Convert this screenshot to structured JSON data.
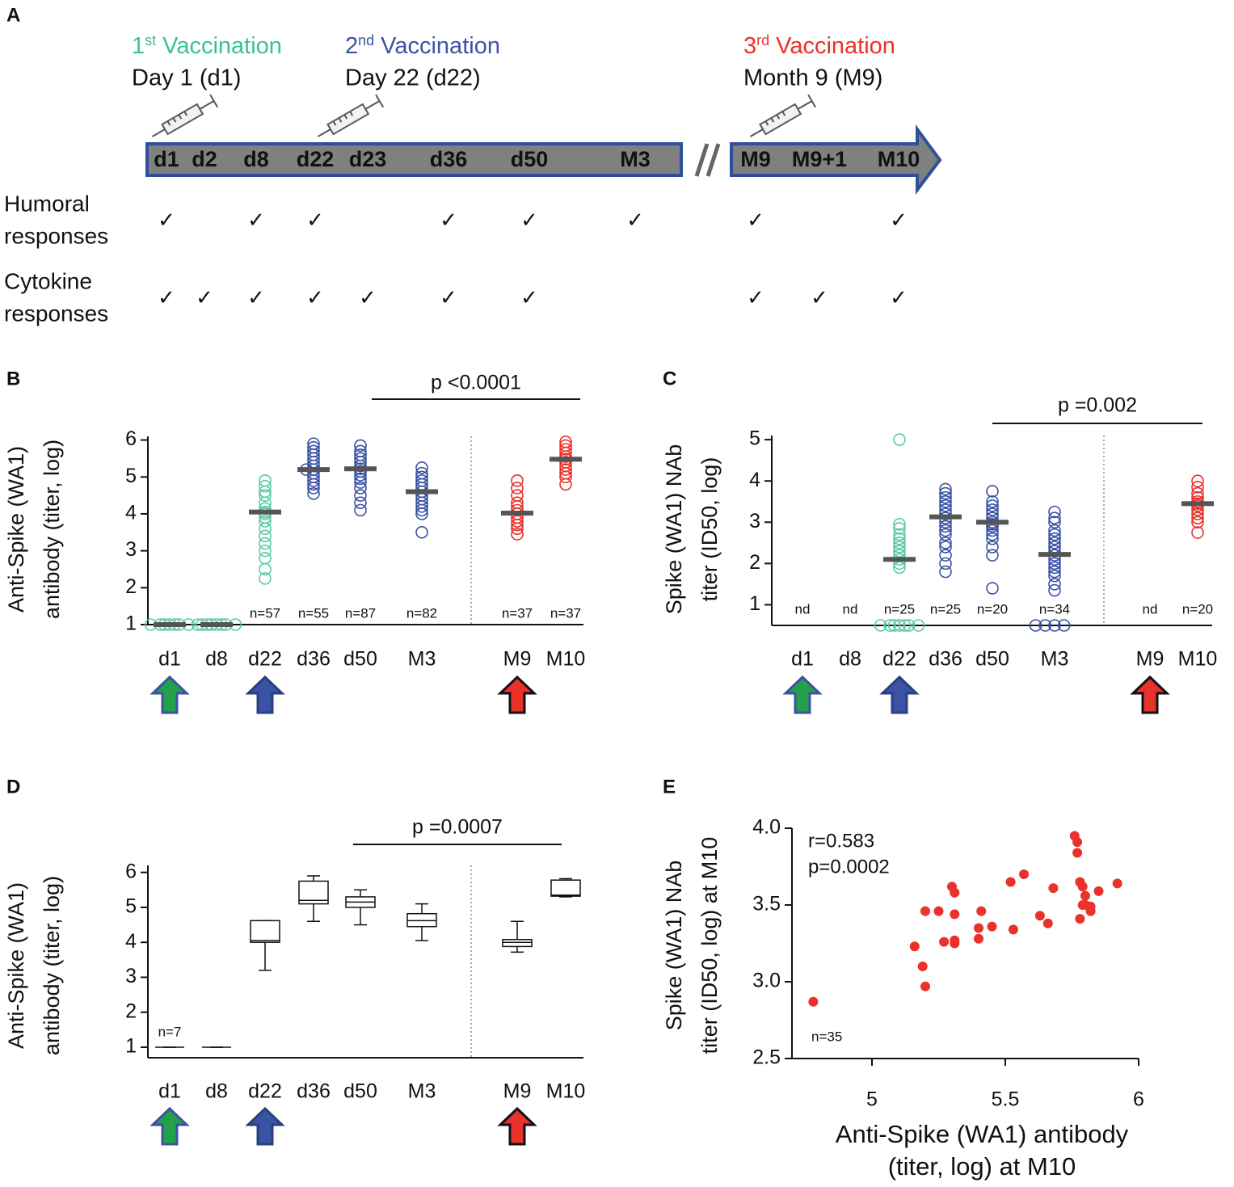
{
  "timeline": {
    "label": "A",
    "vaccinations": [
      {
        "number": "1",
        "suffix": "st",
        "name": "Vaccination",
        "day": "Day 1 (d1)",
        "color": "#3bbf9c"
      },
      {
        "number": "2",
        "suffix": "nd",
        "name": "Vaccination",
        "day": "Day 22 (d22)",
        "color": "#3a53a4"
      },
      {
        "number": "3",
        "suffix": "rd",
        "name": "Vaccination",
        "day": "Month 9 (M9)",
        "color": "#e8322b"
      }
    ],
    "timepoints": [
      "d1",
      "d2",
      "d8",
      "d22",
      "d23",
      "d36",
      "d50",
      "M3",
      "M9",
      "M9+1",
      "M10"
    ],
    "check_symbol": "✓",
    "rows": [
      {
        "label": [
          "Humoral",
          "responses"
        ],
        "checks": [
          true,
          false,
          true,
          true,
          false,
          true,
          true,
          true,
          true,
          false,
          true
        ]
      },
      {
        "label": [
          "Cytokine",
          "responses"
        ],
        "checks": [
          true,
          true,
          true,
          true,
          true,
          true,
          true,
          false,
          true,
          true,
          true
        ]
      }
    ]
  },
  "chart_data": [
    {
      "type": "strip",
      "label": "B",
      "ylabel": [
        "Anti-Spike (WA1)",
        "antibody (titer, log)"
      ],
      "ylim": [
        1,
        6.1
      ],
      "yticks": [
        1,
        2,
        3,
        4,
        5,
        6
      ],
      "annotation": "p <0.0001",
      "groups": [
        {
          "category": "d1",
          "color": "#5cc9a7",
          "points": [
            1,
            1,
            1,
            1,
            1,
            1,
            1
          ],
          "median": 1
        },
        {
          "category": "d8",
          "color": "#5cc9a7",
          "points": [
            1,
            1,
            1,
            1,
            1,
            1,
            1,
            1
          ],
          "median": 1
        },
        {
          "category": "d22",
          "color": "#5cc9a7",
          "points": [
            4.9,
            4.75,
            4.6,
            4.5,
            4.3,
            4.15,
            4.05,
            4.0,
            3.9,
            3.8,
            3.6,
            3.4,
            3.2,
            3.0,
            2.8,
            2.5,
            2.25
          ],
          "median": 4.05,
          "n_label": "n=57"
        },
        {
          "category": "d36",
          "color": "#3a53a4",
          "points": [
            5.9,
            5.8,
            5.7,
            5.6,
            5.5,
            5.4,
            5.3,
            5.2,
            5.2,
            5.1,
            5.0,
            4.9,
            4.8,
            4.7,
            4.55
          ],
          "median": 5.2,
          "n_label": "n=55"
        },
        {
          "category": "d50",
          "color": "#3a53a4",
          "points": [
            5.85,
            5.7,
            5.6,
            5.5,
            5.4,
            5.3,
            5.22,
            5.15,
            5.05,
            4.95,
            4.85,
            4.7,
            4.5,
            4.3,
            4.1
          ],
          "median": 5.22,
          "n_label": "n=87"
        },
        {
          "category": "M3",
          "color": "#3a53a4",
          "points": [
            5.25,
            5.1,
            5.0,
            4.9,
            4.8,
            4.7,
            4.6,
            4.5,
            4.4,
            4.3,
            4.2,
            4.1,
            4.0,
            3.5
          ],
          "median": 4.6,
          "n_label": "n=82"
        },
        {
          "category": "M9",
          "color": "#e8322b",
          "points": [
            4.9,
            4.7,
            4.5,
            4.3,
            4.2,
            4.1,
            4.0,
            3.9,
            3.8,
            3.7,
            3.6,
            3.45
          ],
          "median": 4.02,
          "n_label": "n=37"
        },
        {
          "category": "M10",
          "color": "#e8322b",
          "points": [
            5.95,
            5.85,
            5.75,
            5.65,
            5.55,
            5.48,
            5.4,
            5.3,
            5.2,
            5.1,
            5.0,
            4.8
          ],
          "median": 5.48,
          "n_label": "n=37"
        }
      ]
    },
    {
      "type": "strip",
      "label": "C",
      "ylabel": [
        "Spike (WA1) NAb",
        "titer (ID50, log)"
      ],
      "ylim": [
        0.5,
        5.1
      ],
      "yticks": [
        1,
        2,
        3,
        4,
        5
      ],
      "annotation": "p =0.002",
      "groups": [
        {
          "category": "d1",
          "color": "#5cc9a7",
          "points": [],
          "n_label": "nd"
        },
        {
          "category": "d8",
          "color": "#5cc9a7",
          "points": [],
          "n_label": "nd"
        },
        {
          "category": "d22",
          "color": "#5cc9a7",
          "points": [
            5.0,
            2.95,
            2.85,
            2.7,
            2.6,
            2.5,
            2.4,
            2.3,
            2.2,
            2.1,
            2.0,
            1.9,
            0.5,
            0.5,
            0.5,
            0.5,
            0.5,
            0.5,
            0.5
          ],
          "median": 2.1,
          "n_label": "n=25"
        },
        {
          "category": "d36",
          "color": "#3a53a4",
          "points": [
            3.8,
            3.7,
            3.6,
            3.5,
            3.4,
            3.3,
            3.2,
            3.1,
            3.0,
            2.9,
            2.8,
            2.7,
            2.5,
            2.4,
            2.2,
            2.0,
            1.8
          ],
          "median": 3.13,
          "n_label": "n=25"
        },
        {
          "category": "d50",
          "color": "#3a53a4",
          "points": [
            3.75,
            3.5,
            3.4,
            3.3,
            3.2,
            3.1,
            3.0,
            2.95,
            2.9,
            2.8,
            2.7,
            2.6,
            2.4,
            2.2,
            1.4
          ],
          "median": 3.0,
          "n_label": "n=20"
        },
        {
          "category": "M3",
          "color": "#3a53a4",
          "points": [
            3.25,
            3.1,
            3.0,
            2.8,
            2.7,
            2.6,
            2.5,
            2.4,
            2.3,
            2.2,
            2.1,
            2.0,
            1.9,
            1.8,
            1.7,
            1.5,
            1.35,
            0.5,
            0.5,
            0.5,
            0.5
          ],
          "median": 2.22,
          "n_label": "n=34"
        },
        {
          "category": "M9",
          "color": "#e8322b",
          "points": [],
          "n_label": "nd"
        },
        {
          "category": "M10",
          "color": "#e8322b",
          "points": [
            4.0,
            3.85,
            3.7,
            3.6,
            3.5,
            3.45,
            3.4,
            3.3,
            3.2,
            3.1,
            3.0,
            2.75
          ],
          "median": 3.45,
          "n_label": "n=20"
        }
      ]
    },
    {
      "type": "box",
      "label": "D",
      "ylabel": [
        "Anti-Spike (WA1)",
        "antibody (titer, log)"
      ],
      "ylim": [
        0.7,
        6.2
      ],
      "yticks": [
        1,
        2,
        3,
        4,
        5,
        6
      ],
      "annotation": "p =0.0007",
      "groups": [
        {
          "category": "d1",
          "min": 1,
          "q1": 1,
          "median": 1,
          "q3": 1,
          "max": 1,
          "n_label": "n=7"
        },
        {
          "category": "d8",
          "min": 1,
          "q1": 1,
          "median": 1,
          "q3": 1,
          "max": 1
        },
        {
          "category": "d22",
          "min": 3.2,
          "q1": 4.0,
          "median": 4.05,
          "q3": 4.62,
          "max": 4.62
        },
        {
          "category": "d36",
          "min": 4.6,
          "q1": 5.1,
          "median": 5.2,
          "q3": 5.75,
          "max": 5.9
        },
        {
          "category": "d50",
          "min": 4.5,
          "q1": 5.0,
          "median": 5.15,
          "q3": 5.3,
          "max": 5.5
        },
        {
          "category": "M3",
          "min": 4.05,
          "q1": 4.45,
          "median": 4.62,
          "q3": 4.82,
          "max": 5.1
        },
        {
          "category": "M9",
          "min": 3.72,
          "q1": 3.88,
          "median": 4.0,
          "q3": 4.08,
          "max": 4.6
        },
        {
          "category": "M10",
          "min": 5.3,
          "q1": 5.32,
          "median": 5.35,
          "q3": 5.78,
          "max": 5.82
        }
      ]
    },
    {
      "type": "scatter",
      "label": "E",
      "color": "#e8322b",
      "ylabel": [
        "Spike (WA1) NAb",
        "titer (ID50, log) at M10"
      ],
      "xlabel": [
        "Anti-Spike (WA1) antibody",
        "(titer, log) at M10"
      ],
      "annotations": [
        "r=0.583",
        "p=0.0002"
      ],
      "n_label": "n=35",
      "xlim": [
        4.7,
        6.0
      ],
      "xticks": [
        5,
        5.5,
        6
      ],
      "ylim": [
        2.5,
        4.0
      ],
      "yticks": [
        2.5,
        {
          "value": 3,
          "label": "3.0"
        },
        3.5,
        {
          "value": 4,
          "label": "4.0"
        }
      ],
      "x": [
        4.78,
        5.16,
        5.19,
        5.2,
        5.2,
        5.25,
        5.27,
        5.3,
        5.31,
        5.31,
        5.31,
        5.31,
        5.4,
        5.4,
        5.41,
        5.45,
        5.52,
        5.53,
        5.57,
        5.63,
        5.66,
        5.68,
        5.76,
        5.77,
        5.77,
        5.78,
        5.78,
        5.79,
        5.79,
        5.8,
        5.8,
        5.82,
        5.82,
        5.85,
        5.92
      ],
      "y": [
        2.87,
        3.23,
        3.1,
        2.97,
        3.46,
        3.46,
        3.26,
        3.62,
        3.58,
        3.44,
        3.27,
        3.25,
        3.28,
        3.35,
        3.46,
        3.36,
        3.65,
        3.34,
        3.7,
        3.43,
        3.38,
        3.61,
        3.95,
        3.91,
        3.84,
        3.41,
        3.65,
        3.62,
        3.5,
        3.56,
        3.5,
        3.49,
        3.46,
        3.59,
        3.64
      ]
    }
  ]
}
